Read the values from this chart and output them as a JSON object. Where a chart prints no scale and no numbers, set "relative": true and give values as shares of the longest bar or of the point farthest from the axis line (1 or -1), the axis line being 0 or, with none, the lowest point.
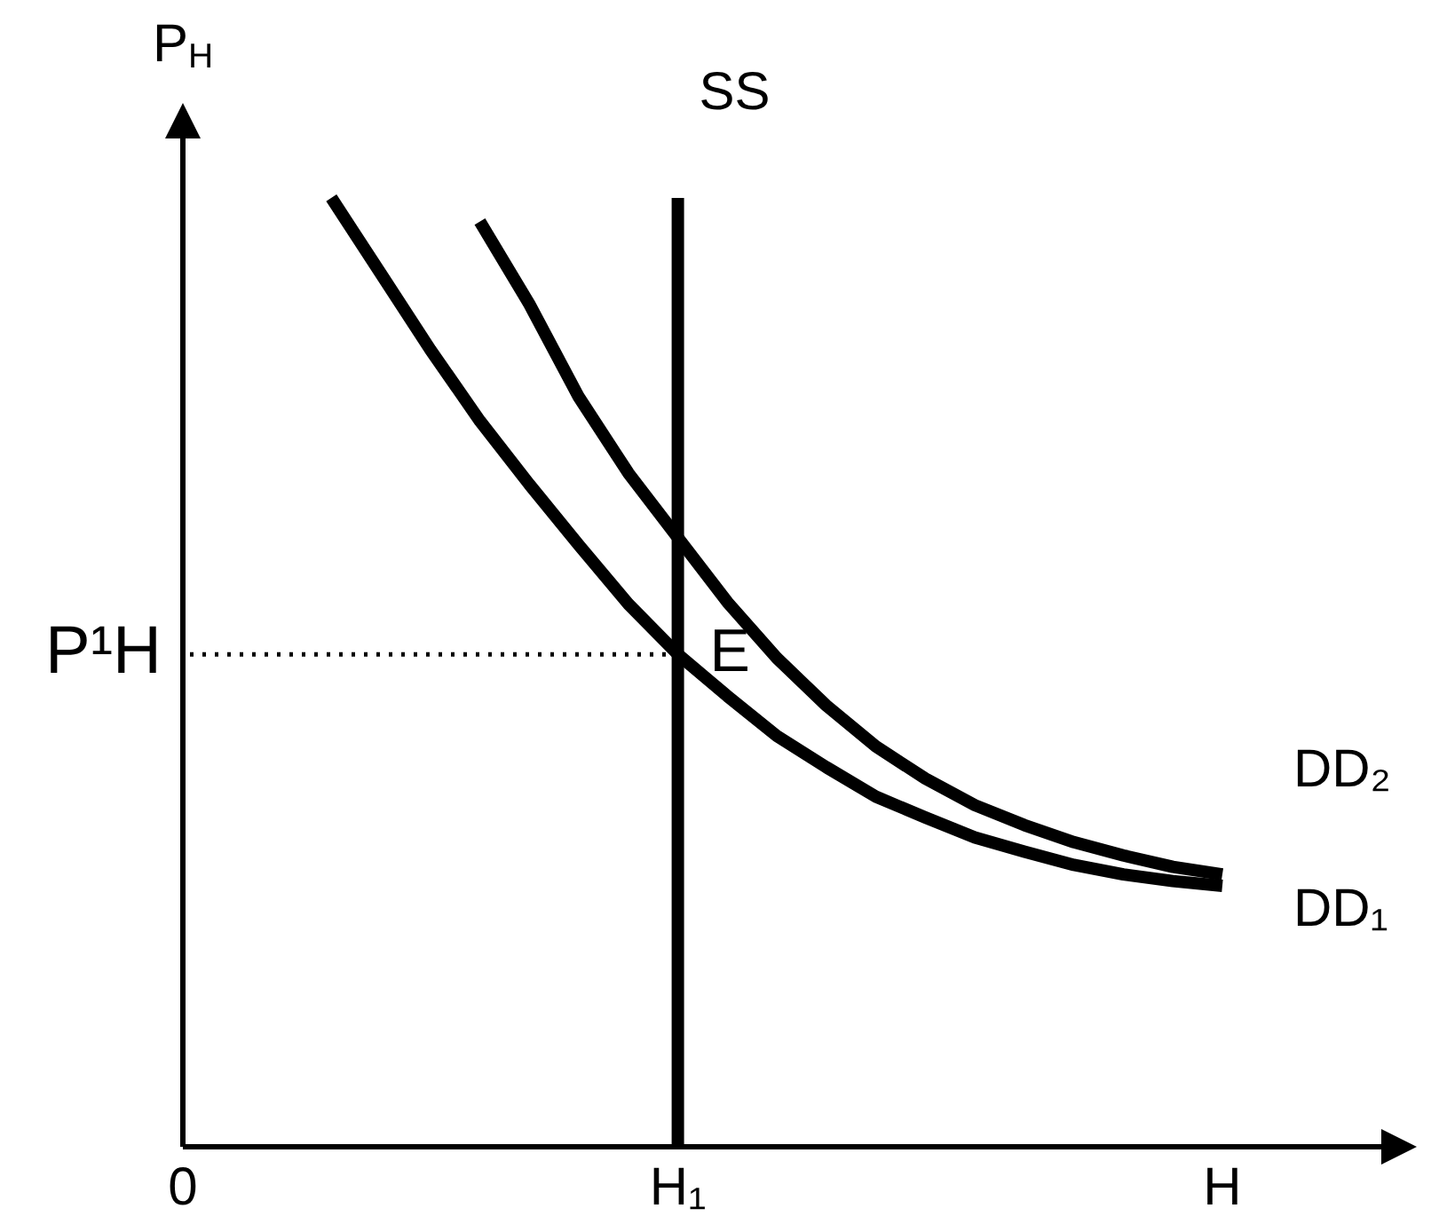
{
  "chart_data": {
    "type": "line",
    "relative": true,
    "ylabel": "P$_{H}$",
    "legend": false,
    "marker": "none",
    "line_style": "solid",
    "categories": [
      "0",
      null,
      null,
      null,
      null,
      null,
      null,
      null,
      null,
      null,
      "H₁",
      null,
      null,
      null,
      null,
      null,
      null,
      null,
      null,
      null,
      null,
      "H",
      null,
      null,
      null,
      null
    ],
    "series": [
      {
        "name": "DD₁",
        "color": "#000000",
        "values": [
          null,
          null,
          null,
          1,
          0.92,
          0.84,
          0.765,
          0.698,
          0.634,
          0.572,
          0.519,
          0.475,
          0.433,
          0.4,
          0.369,
          0.347,
          0.326,
          0.311,
          0.297,
          0.287,
          0.28,
          0.275,
          null,
          null,
          null,
          null
        ]
      },
      {
        "name": "DD₂",
        "color": "#000000",
        "values": [
          null,
          null,
          null,
          null,
          null,
          null,
          0.975,
          0.888,
          0.79,
          0.71,
          0.642,
          0.574,
          0.515,
          0.465,
          0.422,
          0.388,
          0.36,
          0.339,
          0.321,
          0.307,
          0.295,
          0.287,
          null,
          null,
          null,
          null
        ]
      }
    ],
    "ref_lines": [
      {
        "axis": "x",
        "value": "H₁",
        "label": "SS",
        "color": "#000000",
        "line_style": "solid"
      },
      {
        "axis": "y",
        "value": 0.519,
        "label": "P¹H",
        "color": "#000000",
        "line_style": "dotted"
      }
    ],
    "annotations": [
      {
        "text": "E",
        "x": "H₁",
        "y": 0.519
      }
    ]
  }
}
